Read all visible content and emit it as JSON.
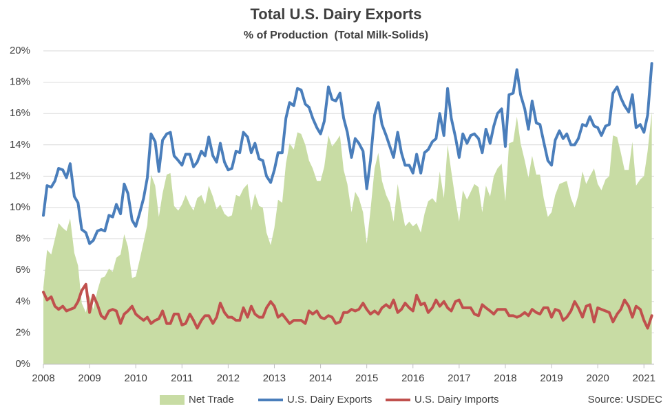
{
  "chart_data": {
    "type": "line",
    "title": "Total U.S. Dairy Exports",
    "subtitle": "% of Production  (Total Milk-Solids)",
    "source": "Source: USDEC",
    "grid": true,
    "legend": "bottom",
    "xlim": [
      2008,
      2021.22
    ],
    "xticks": [
      2008,
      2009,
      2010,
      2011,
      2012,
      2013,
      2014,
      2015,
      2016,
      2017,
      2018,
      2019,
      2020,
      2021
    ],
    "ylim": [
      0,
      20
    ],
    "yticks": [
      {
        "value": 0,
        "label": "0%"
      },
      {
        "value": 2,
        "label": "2%"
      },
      {
        "value": 4,
        "label": "4%"
      },
      {
        "value": 6,
        "label": "6%"
      },
      {
        "value": 8,
        "label": "8%"
      },
      {
        "value": 10,
        "label": "10%"
      },
      {
        "value": 12,
        "label": "12%"
      },
      {
        "value": 14,
        "label": "14%"
      },
      {
        "value": 16,
        "label": "16%"
      },
      {
        "value": 18,
        "label": "18%"
      },
      {
        "value": 20,
        "label": "20%"
      }
    ],
    "x": [
      2008,
      2008.08,
      2008.17,
      2008.25,
      2008.33,
      2008.42,
      2008.5,
      2008.58,
      2008.67,
      2008.75,
      2008.83,
      2008.92,
      2009,
      2009.08,
      2009.17,
      2009.25,
      2009.33,
      2009.42,
      2009.5,
      2009.58,
      2009.67,
      2009.75,
      2009.83,
      2009.92,
      2010,
      2010.08,
      2010.17,
      2010.25,
      2010.33,
      2010.42,
      2010.5,
      2010.58,
      2010.67,
      2010.75,
      2010.83,
      2010.92,
      2011,
      2011.08,
      2011.17,
      2011.25,
      2011.33,
      2011.42,
      2011.5,
      2011.58,
      2011.67,
      2011.75,
      2011.83,
      2011.92,
      2012,
      2012.08,
      2012.17,
      2012.25,
      2012.33,
      2012.42,
      2012.5,
      2012.58,
      2012.67,
      2012.75,
      2012.83,
      2012.92,
      2013,
      2013.08,
      2013.17,
      2013.25,
      2013.33,
      2013.42,
      2013.5,
      2013.58,
      2013.67,
      2013.75,
      2013.83,
      2013.92,
      2014,
      2014.08,
      2014.17,
      2014.25,
      2014.33,
      2014.42,
      2014.5,
      2014.58,
      2014.67,
      2014.75,
      2014.83,
      2014.92,
      2015,
      2015.08,
      2015.17,
      2015.25,
      2015.33,
      2015.42,
      2015.5,
      2015.58,
      2015.67,
      2015.75,
      2015.83,
      2015.92,
      2016,
      2016.08,
      2016.17,
      2016.25,
      2016.33,
      2016.42,
      2016.5,
      2016.58,
      2016.67,
      2016.75,
      2016.83,
      2016.92,
      2017,
      2017.08,
      2017.17,
      2017.25,
      2017.33,
      2017.42,
      2017.5,
      2017.58,
      2017.67,
      2017.75,
      2017.83,
      2017.92,
      2018,
      2018.08,
      2018.17,
      2018.25,
      2018.33,
      2018.42,
      2018.5,
      2018.58,
      2018.67,
      2018.75,
      2018.83,
      2018.92,
      2019,
      2019.08,
      2019.17,
      2019.25,
      2019.33,
      2019.42,
      2019.5,
      2019.58,
      2019.67,
      2019.75,
      2019.83,
      2019.92,
      2020,
      2020.08,
      2020.17,
      2020.25,
      2020.33,
      2020.42,
      2020.5,
      2020.58,
      2020.67,
      2020.75,
      2020.83,
      2020.92,
      2021,
      2021.08,
      2021.17
    ],
    "series": [
      {
        "name": "Net Trade",
        "type": "area",
        "color": "#c8dca4",
        "values": [
          4.9,
          7.3,
          7.0,
          8.0,
          9.0,
          8.7,
          8.5,
          9.3,
          7.1,
          6.3,
          3.9,
          3.3,
          4.4,
          3.5,
          4.7,
          5.5,
          5.6,
          6.1,
          5.9,
          6.8,
          7.0,
          8.3,
          7.5,
          5.5,
          5.6,
          6.6,
          7.8,
          8.9,
          12.1,
          11.4,
          9.4,
          10.9,
          12.1,
          12.2,
          10.1,
          9.8,
          10.2,
          10.8,
          10.2,
          9.8,
          10.6,
          10.8,
          10.2,
          11.4,
          10.7,
          9.9,
          10.2,
          9.6,
          9.4,
          9.5,
          10.8,
          10.7,
          11.2,
          11.5,
          9.8,
          10.9,
          10.1,
          10.0,
          8.4,
          7.6,
          8.7,
          10.5,
          10.3,
          12.8,
          14.1,
          13.7,
          14.8,
          14.7,
          14.0,
          13.0,
          12.5,
          11.7,
          11.7,
          12.6,
          14.6,
          13.9,
          14.2,
          14.6,
          12.4,
          11.5,
          9.7,
          11.0,
          10.6,
          9.7,
          7.7,
          9.8,
          12.5,
          13.5,
          11.7,
          10.8,
          10.3,
          9.1,
          11.5,
          10.0,
          8.8,
          9.1,
          8.8,
          9.0,
          8.4,
          9.6,
          10.4,
          10.6,
          10.3,
          12.3,
          10.6,
          14.0,
          12.3,
          10.5,
          9.1,
          11.1,
          10.5,
          11.0,
          11.5,
          11.3,
          9.7,
          11.4,
          10.7,
          12.0,
          12.5,
          12.8,
          10.4,
          14.1,
          14.2,
          15.8,
          14.1,
          13.0,
          11.9,
          13.3,
          12.1,
          12.1,
          10.6,
          9.4,
          9.7,
          10.8,
          11.5,
          11.6,
          11.7,
          10.6,
          10.0,
          10.8,
          12.3,
          11.5,
          12.0,
          12.5,
          11.5,
          11.1,
          11.8,
          12.0,
          14.6,
          14.5,
          13.5,
          12.4,
          12.4,
          14.2,
          11.4,
          11.8,
          12.0,
          13.6,
          16.1
        ]
      },
      {
        "name": "U.S. Dairy Exports",
        "type": "line",
        "color": "#4a7ebb",
        "values": [
          9.5,
          11.4,
          11.3,
          11.7,
          12.5,
          12.4,
          11.9,
          12.8,
          10.7,
          10.3,
          8.6,
          8.4,
          7.7,
          7.9,
          8.5,
          8.6,
          8.5,
          9.5,
          9.4,
          10.2,
          9.6,
          11.5,
          10.9,
          9.2,
          8.8,
          9.6,
          10.6,
          11.9,
          14.7,
          14.2,
          12.3,
          14.3,
          14.7,
          14.8,
          13.3,
          13.0,
          12.7,
          13.4,
          13.4,
          12.6,
          12.9,
          13.6,
          13.3,
          14.5,
          13.3,
          12.9,
          14.1,
          12.9,
          12.4,
          12.5,
          13.6,
          13.5,
          14.8,
          14.5,
          13.5,
          14.1,
          13.1,
          13.0,
          12.0,
          11.6,
          12.4,
          13.5,
          13.5,
          15.7,
          16.7,
          16.5,
          17.6,
          17.5,
          16.6,
          16.4,
          15.7,
          15.1,
          14.7,
          15.5,
          17.7,
          16.9,
          16.8,
          17.3,
          15.7,
          14.8,
          13.2,
          14.4,
          14.1,
          13.6,
          11.2,
          13.0,
          15.9,
          16.7,
          15.3,
          14.6,
          13.9,
          13.2,
          14.8,
          13.5,
          12.7,
          12.7,
          12.2,
          13.4,
          12.2,
          13.5,
          13.7,
          14.2,
          14.4,
          16.0,
          14.6,
          17.6,
          15.7,
          14.5,
          13.2,
          14.7,
          14.1,
          14.6,
          14.7,
          14.4,
          13.5,
          15.0,
          14.1,
          15.2,
          16.0,
          16.3,
          13.9,
          17.2,
          17.3,
          18.8,
          17.2,
          16.3,
          15.0,
          16.8,
          15.4,
          15.3,
          14.2,
          13.0,
          12.7,
          14.3,
          14.9,
          14.4,
          14.7,
          14.0,
          14.0,
          14.4,
          15.3,
          15.2,
          15.8,
          15.2,
          15.1,
          14.6,
          15.2,
          15.3,
          17.3,
          17.7,
          17.0,
          16.5,
          16.1,
          17.2,
          15.1,
          15.3,
          14.8,
          15.9,
          19.2
        ]
      },
      {
        "name": "U.S. Dairy Imports",
        "type": "line",
        "color": "#c0504d",
        "values": [
          4.6,
          4.1,
          4.3,
          3.7,
          3.5,
          3.7,
          3.4,
          3.5,
          3.6,
          4.0,
          4.7,
          5.1,
          3.3,
          4.4,
          3.8,
          3.1,
          2.9,
          3.4,
          3.5,
          3.4,
          2.6,
          3.2,
          3.4,
          3.7,
          3.2,
          3.0,
          2.8,
          3.0,
          2.6,
          2.8,
          2.9,
          3.4,
          2.6,
          2.6,
          3.2,
          3.2,
          2.5,
          2.6,
          3.2,
          2.8,
          2.3,
          2.8,
          3.1,
          3.1,
          2.6,
          3.0,
          3.9,
          3.3,
          3.0,
          3.0,
          2.8,
          2.8,
          3.6,
          3.0,
          3.7,
          3.2,
          3.0,
          3.0,
          3.6,
          4.0,
          3.7,
          3.0,
          3.2,
          2.9,
          2.6,
          2.8,
          2.8,
          2.8,
          2.6,
          3.4,
          3.2,
          3.4,
          3.0,
          2.9,
          3.1,
          3.0,
          2.6,
          2.7,
          3.3,
          3.3,
          3.5,
          3.4,
          3.5,
          3.9,
          3.5,
          3.2,
          3.4,
          3.2,
          3.6,
          3.8,
          3.6,
          4.1,
          3.3,
          3.5,
          3.9,
          3.6,
          3.4,
          4.4,
          3.8,
          3.9,
          3.3,
          3.6,
          4.1,
          3.7,
          4.0,
          3.6,
          3.4,
          4.0,
          4.1,
          3.6,
          3.6,
          3.6,
          3.2,
          3.1,
          3.8,
          3.6,
          3.4,
          3.2,
          3.5,
          3.5,
          3.5,
          3.1,
          3.1,
          3.0,
          3.1,
          3.3,
          3.1,
          3.5,
          3.3,
          3.2,
          3.6,
          3.6,
          3.0,
          3.5,
          3.4,
          2.8,
          3.0,
          3.4,
          4.0,
          3.6,
          3.0,
          3.7,
          3.8,
          2.7,
          3.6,
          3.5,
          3.4,
          3.3,
          2.7,
          3.2,
          3.5,
          4.1,
          3.7,
          3.0,
          3.7,
          3.5,
          2.8,
          2.3,
          3.1
        ]
      }
    ]
  }
}
